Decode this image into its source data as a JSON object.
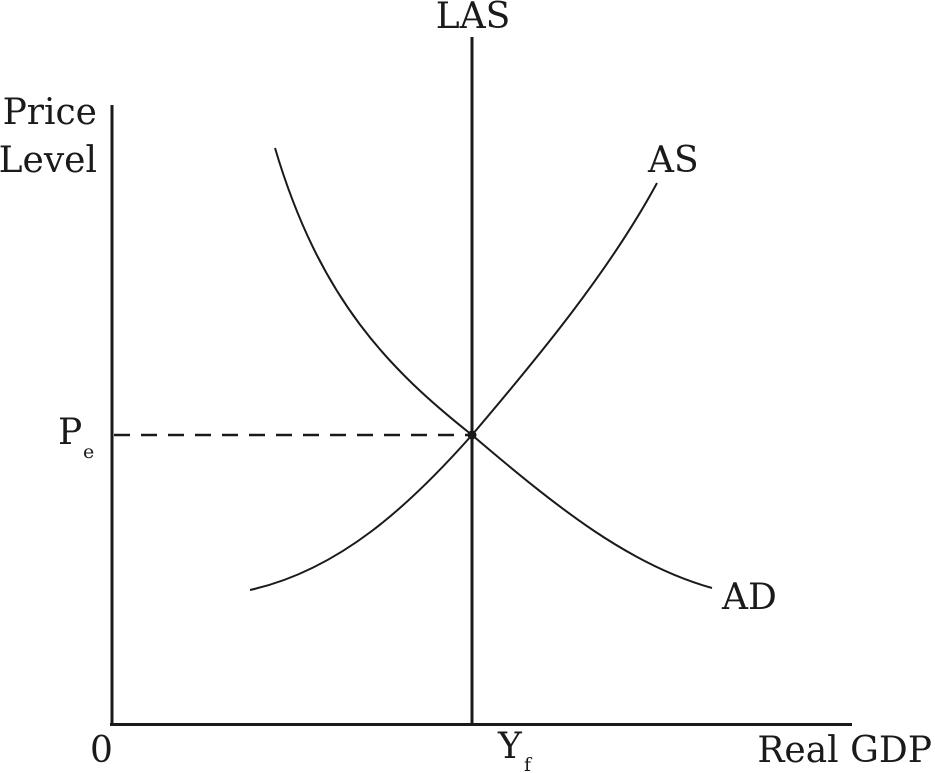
{
  "labels": {
    "las": "LAS",
    "y_axis_line1": "Price",
    "y_axis_line2": "Level",
    "as": "AS",
    "ad": "AD",
    "p_main": "P",
    "p_sub": "e",
    "origin": "0",
    "y_main": "Y",
    "y_sub": "f",
    "x_axis": "Real GDP"
  },
  "colors": {
    "ink": "#1a1a1a",
    "background": "#ffffff"
  }
}
